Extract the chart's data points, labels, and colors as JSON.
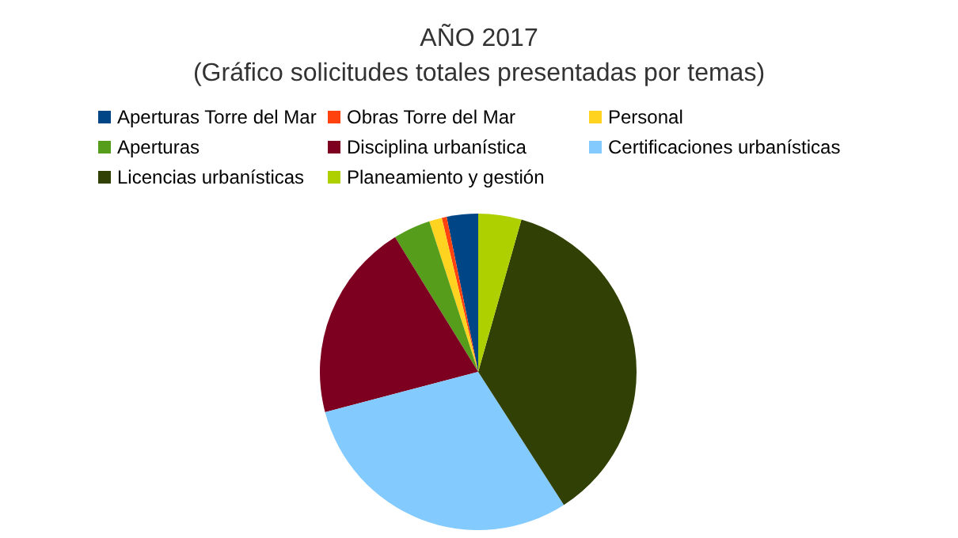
{
  "chart_data": {
    "type": "pie",
    "title": "AÑO 2017",
    "subtitle": "(Gráfico solicitudes totales presentadas por temas)",
    "categories": [
      "Aperturas Torre del Mar",
      "Obras Torre del Mar",
      "Personal",
      "Aperturas",
      "Disciplina urbanística",
      "Certificaciones urbanísticas",
      "Licencias urbanísticas",
      "Planeamiento y gestión"
    ],
    "values": [
      3.2,
      0.5,
      1.3,
      3.8,
      20.3,
      30,
      36.5,
      4.4
    ],
    "colors": [
      "#004586",
      "#ff420e",
      "#ffd320",
      "#579d1c",
      "#7e0021",
      "#83caff",
      "#314004",
      "#aecf00"
    ],
    "legend": "top"
  }
}
